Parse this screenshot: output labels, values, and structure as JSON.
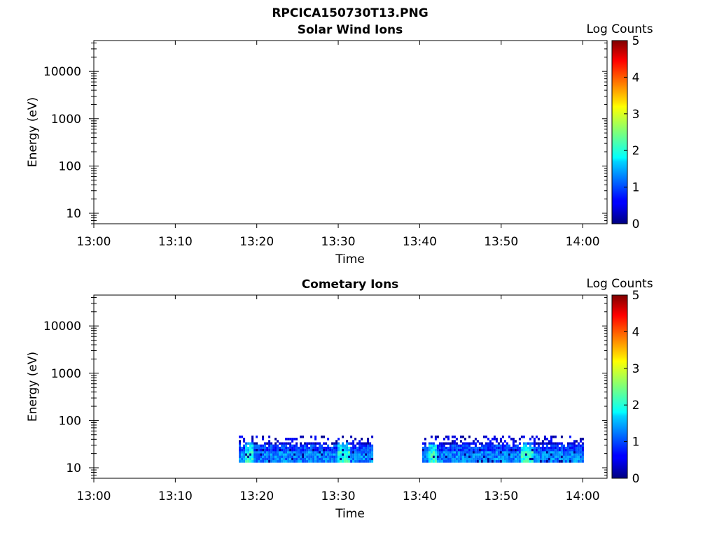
{
  "figure": {
    "title": "RPCICA150730T13.PNG"
  },
  "chart_data": [
    {
      "type": "heatmap",
      "title": "Solar Wind Ions",
      "xlabel": "Time",
      "ylabel": "Energy (eV)",
      "x_ticks": [
        "13:00",
        "13:10",
        "13:20",
        "13:30",
        "13:40",
        "13:50",
        "14:00"
      ],
      "y_ticks": [
        "10",
        "100",
        "1000",
        "10000"
      ],
      "y_tick_values": [
        10,
        100,
        1000,
        10000
      ],
      "y_scale": "log",
      "ylim": [
        6,
        45000
      ],
      "xlim_minutes": [
        0,
        63
      ],
      "colorbar": {
        "label": "Log Counts",
        "ticks": [
          "0",
          "1",
          "2",
          "3",
          "4",
          "5"
        ],
        "range": [
          0,
          5
        ],
        "colormap": "jet"
      },
      "data_blocks": []
    },
    {
      "type": "heatmap",
      "title": "Cometary Ions",
      "xlabel": "Time",
      "ylabel": "Energy (eV)",
      "x_ticks": [
        "13:00",
        "13:10",
        "13:20",
        "13:30",
        "13:40",
        "13:50",
        "14:00"
      ],
      "y_ticks": [
        "10",
        "100",
        "1000",
        "10000"
      ],
      "y_tick_values": [
        10,
        100,
        1000,
        10000
      ],
      "y_scale": "log",
      "ylim": [
        6,
        45000
      ],
      "xlim_minutes": [
        0,
        63
      ],
      "colorbar": {
        "label": "Log Counts",
        "ticks": [
          "0",
          "1",
          "2",
          "3",
          "4",
          "5"
        ],
        "range": [
          0,
          5
        ],
        "colormap": "jet"
      },
      "data_blocks": [
        {
          "t_start_min": 17.8,
          "t_end_min": 34.2,
          "energy_min_eV": 13,
          "energy_max_eV": 48
        },
        {
          "t_start_min": 40.3,
          "t_end_min": 60.0,
          "energy_min_eV": 13,
          "energy_max_eV": 48
        }
      ]
    }
  ]
}
